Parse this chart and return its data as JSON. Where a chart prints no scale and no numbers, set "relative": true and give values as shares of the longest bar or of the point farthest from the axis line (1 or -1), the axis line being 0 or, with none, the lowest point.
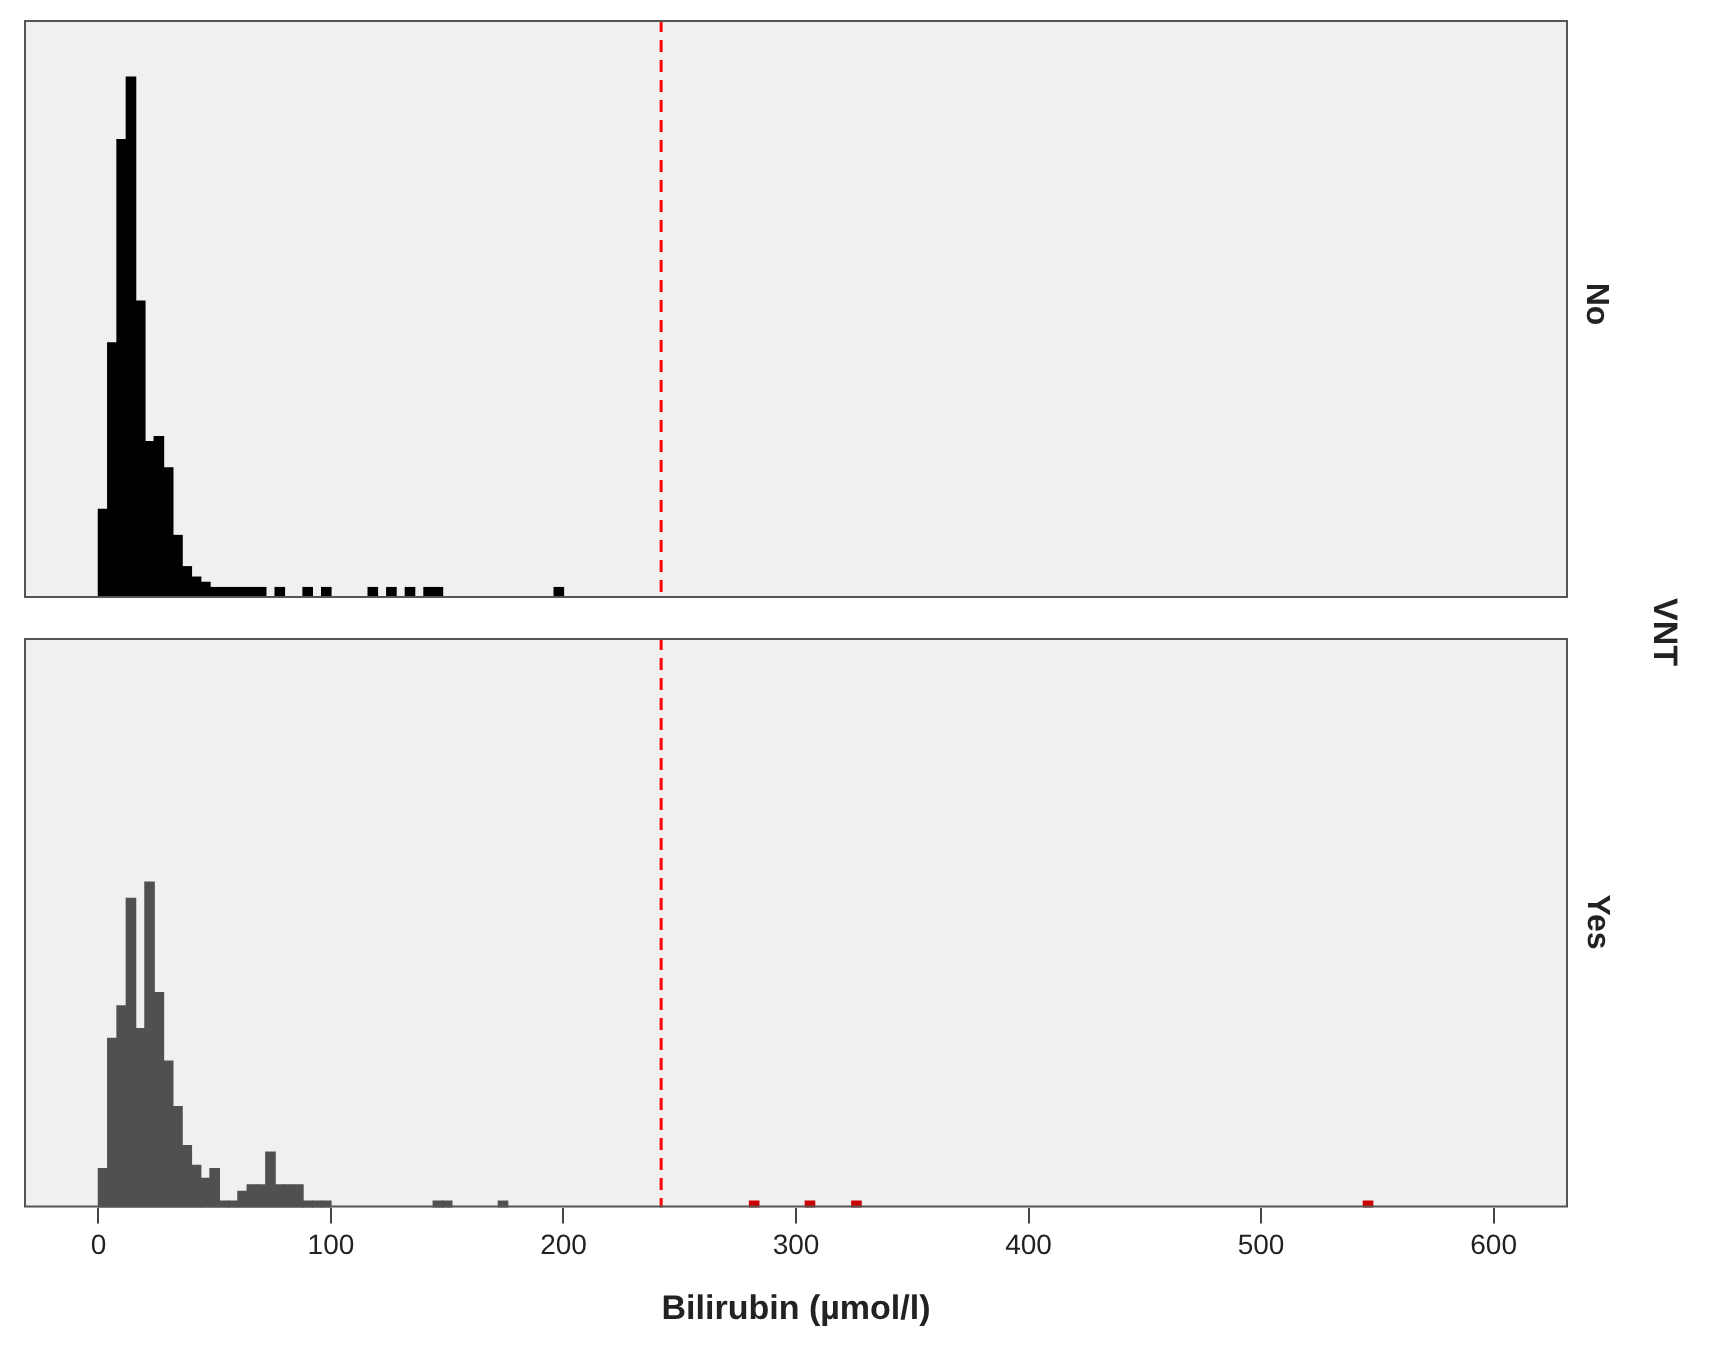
{
  "chart_data": [
    {
      "type": "bar",
      "title": "No",
      "y2label": "VNT",
      "relative": true,
      "tick_labels": false,
      "grid": false,
      "legend": false,
      "xlim": [
        -32,
        632
      ],
      "xticks": [
        0,
        100,
        200,
        300,
        400,
        500,
        600
      ],
      "x": [
        2,
        6,
        10,
        14,
        18,
        22,
        26,
        30,
        34,
        38,
        42,
        46,
        50,
        54,
        58,
        62,
        66,
        70,
        78,
        90,
        98,
        118,
        126,
        134,
        142,
        146,
        198
      ],
      "values": [
        0.17,
        0.49,
        0.88,
        1,
        0.57,
        0.3,
        0.31,
        0.25,
        0.12,
        0.06,
        0.04,
        0.03,
        0.02,
        0.02,
        0.02,
        0.02,
        0.02,
        0.02,
        0.02,
        0.02,
        0.02,
        0.02,
        0.02,
        0.02,
        0.02,
        0.02,
        0.02
      ],
      "color": "#000000",
      "ref_lines": [
        {
          "axis": "x",
          "value": 242,
          "color": "#ff0000",
          "line_style": "dashed"
        }
      ]
    },
    {
      "type": "bar",
      "title": "Yes",
      "xlabel": "Bilirubin (µmol/l)",
      "relative": true,
      "tick_labels": "x",
      "grid": false,
      "legend": false,
      "xlim": [
        -32,
        632
      ],
      "xticks": [
        0,
        100,
        200,
        300,
        400,
        500,
        600
      ],
      "x": [
        2,
        6,
        10,
        14,
        18,
        22,
        26,
        30,
        34,
        38,
        42,
        46,
        50,
        54,
        58,
        62,
        66,
        70,
        74,
        78,
        82,
        86,
        90,
        94,
        98,
        146,
        150,
        174,
        282,
        306,
        326,
        546
      ],
      "values": [
        0.12,
        0.52,
        0.62,
        0.95,
        0.55,
        1,
        0.66,
        0.45,
        0.31,
        0.19,
        0.13,
        0.09,
        0.12,
        0.02,
        0.02,
        0.05,
        0.07,
        0.07,
        0.17,
        0.07,
        0.07,
        0.07,
        0.02,
        0.02,
        0.02,
        0.02,
        0.02,
        0.02,
        0.02,
        0.02,
        0.02,
        0.02
      ],
      "colors": [
        "#505050",
        "#505050",
        "#505050",
        "#505050",
        "#505050",
        "#505050",
        "#505050",
        "#505050",
        "#505050",
        "#505050",
        "#505050",
        "#505050",
        "#505050",
        "#505050",
        "#505050",
        "#505050",
        "#505050",
        "#505050",
        "#505050",
        "#505050",
        "#505050",
        "#505050",
        "#505050",
        "#505050",
        "#505050",
        "#505050",
        "#505050",
        "#505050",
        "#cc0000",
        "#cc0000",
        "#cc0000",
        "#cc0000"
      ],
      "ref_lines": [
        {
          "axis": "x",
          "value": 242,
          "color": "#ff0000",
          "line_style": "dashed"
        }
      ]
    }
  ]
}
